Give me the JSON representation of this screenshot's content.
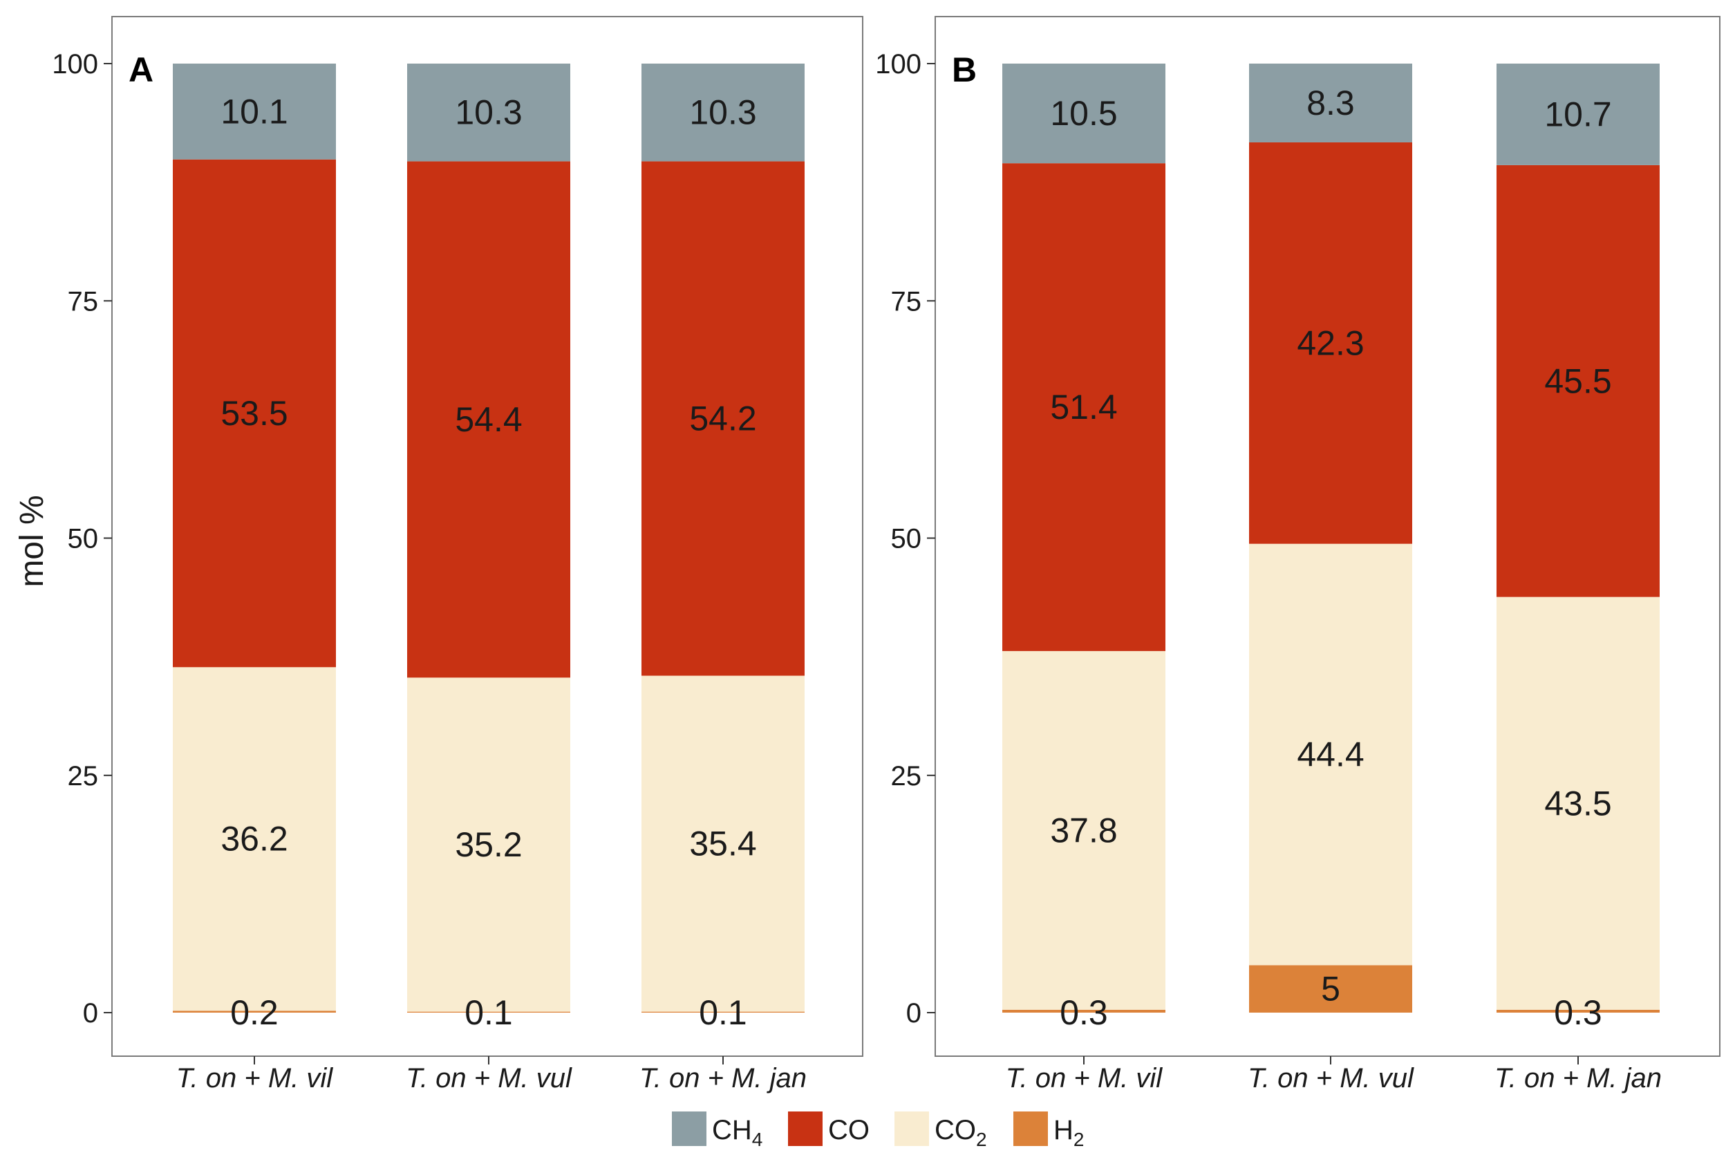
{
  "chart_data": {
    "type": "bar",
    "stacked": true,
    "ylabel": "mol %",
    "ylim": [
      0,
      100
    ],
    "yticks": [
      0,
      25,
      50,
      75,
      100
    ],
    "grid": false,
    "legend_position": "bottom",
    "legend": [
      {
        "key": "CH4",
        "base": "CH",
        "sub": "4",
        "color": "#8c9ea4"
      },
      {
        "key": "CO",
        "base": "CO",
        "sub": "",
        "color": "#c83213"
      },
      {
        "key": "CO2",
        "base": "CO",
        "sub": "2",
        "color": "#f9ecd0"
      },
      {
        "key": "H2",
        "base": "H",
        "sub": "2",
        "color": "#dc8239"
      }
    ],
    "panels": [
      {
        "label": "A",
        "categories": [
          "T. on + M. vil",
          "T. on + M. vul",
          "T. on + M. jan"
        ],
        "series": [
          {
            "name": "H2",
            "values": [
              0.2,
              0.1,
              0.1
            ]
          },
          {
            "name": "CO2",
            "values": [
              36.2,
              35.2,
              35.4
            ]
          },
          {
            "name": "CO",
            "values": [
              53.5,
              54.4,
              54.2
            ]
          },
          {
            "name": "CH4",
            "values": [
              10.1,
              10.3,
              10.3
            ]
          }
        ]
      },
      {
        "label": "B",
        "categories": [
          "T. on + M. vil",
          "T. on + M. vul",
          "T. on + M. jan"
        ],
        "series": [
          {
            "name": "H2",
            "values": [
              0.3,
              5,
              0.3
            ]
          },
          {
            "name": "CO2",
            "values": [
              37.8,
              44.4,
              43.5
            ]
          },
          {
            "name": "CO",
            "values": [
              51.4,
              42.3,
              45.5
            ]
          },
          {
            "name": "CH4",
            "values": [
              10.5,
              8.3,
              10.7
            ]
          }
        ]
      }
    ]
  }
}
